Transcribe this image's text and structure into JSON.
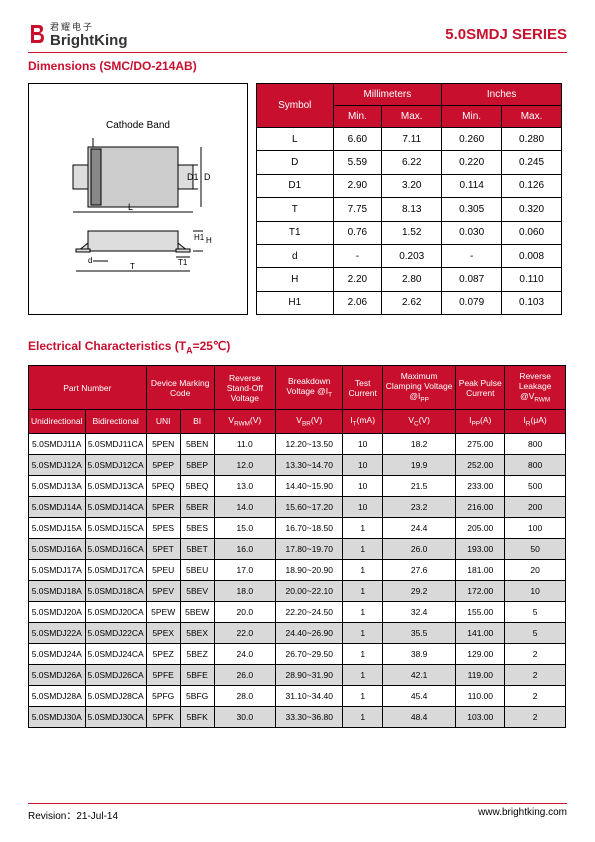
{
  "header": {
    "brand_cn": "君耀电子",
    "brand_en": "BrightKing",
    "series": "5.0SMDJ SERIES"
  },
  "sections": {
    "dimensions_title": "Dimensions (SMC/DO-214AB)",
    "cathode_label": "Cathode Band",
    "electrical_title_prefix": "Electrical Characteristics (T",
    "electrical_title_sub": "A",
    "electrical_title_suffix": "=25℃)"
  },
  "dim_table": {
    "headers": {
      "symbol": "Symbol",
      "mm": "Millimeters",
      "in": "Inches",
      "min": "Min.",
      "max": "Max."
    },
    "rows": [
      {
        "sym": "L",
        "mm_min": "6.60",
        "mm_max": "7.11",
        "in_min": "0.260",
        "in_max": "0.280"
      },
      {
        "sym": "D",
        "mm_min": "5.59",
        "mm_max": "6.22",
        "in_min": "0.220",
        "in_max": "0.245"
      },
      {
        "sym": "D1",
        "mm_min": "2.90",
        "mm_max": "3.20",
        "in_min": "0.114",
        "in_max": "0.126"
      },
      {
        "sym": "T",
        "mm_min": "7.75",
        "mm_max": "8.13",
        "in_min": "0.305",
        "in_max": "0.320"
      },
      {
        "sym": "T1",
        "mm_min": "0.76",
        "mm_max": "1.52",
        "in_min": "0.030",
        "in_max": "0.060"
      },
      {
        "sym": "d",
        "mm_min": "-",
        "mm_max": "0.203",
        "in_min": "-",
        "in_max": "0.008"
      },
      {
        "sym": "H",
        "mm_min": "2.20",
        "mm_max": "2.80",
        "in_min": "0.087",
        "in_max": "0.110"
      },
      {
        "sym": "H1",
        "mm_min": "2.06",
        "mm_max": "2.62",
        "in_min": "0.079",
        "in_max": "0.103"
      }
    ]
  },
  "elec_table": {
    "headers": {
      "part": "Part Number",
      "marking": "Device Marking Code",
      "vrwm_h": "Reverse Stand-Off Voltage",
      "vbr_h": "Breakdown Voltage @I",
      "vbr_sub": "T",
      "it_h": "Test Current",
      "vc_h": "Maximum Clamping Voltage @I",
      "vc_sub": "PP",
      "ipp_h": "Peak Pulse Current",
      "ir_h": "Reverse Leakage @V",
      "ir_sub": "RWM",
      "uni": "Unidirectional",
      "bi": "Bidirectional",
      "m_uni": "UNI",
      "m_bi": "BI",
      "vrwm": "V",
      "vrwm_s": "RWM",
      "vrwm_u": "(V)",
      "vbr": "V",
      "vbr_s": "BR",
      "vbr_u": "(V)",
      "it": "I",
      "it_s": "T",
      "it_u": "(mA)",
      "vc": "V",
      "vc_s": "C",
      "vc_u": "(V)",
      "ipp": "I",
      "ipp_s": "PP",
      "ipp_u": "(A)",
      "ir": "I",
      "ir_s": "R",
      "ir_u": "(μA)"
    },
    "rows": [
      {
        "u": "5.0SMDJ11A",
        "b": "5.0SMDJ11CA",
        "mu": "5PEN",
        "mb": "5BEN",
        "vrwm": "11.0",
        "vbr": "12.20~13.50",
        "it": "10",
        "vc": "18.2",
        "ipp": "275.00",
        "ir": "800",
        "alt": false
      },
      {
        "u": "5.0SMDJ12A",
        "b": "5.0SMDJ12CA",
        "mu": "5PEP",
        "mb": "5BEP",
        "vrwm": "12.0",
        "vbr": "13.30~14.70",
        "it": "10",
        "vc": "19.9",
        "ipp": "252.00",
        "ir": "800",
        "alt": true
      },
      {
        "u": "5.0SMDJ13A",
        "b": "5.0SMDJ13CA",
        "mu": "5PEQ",
        "mb": "5BEQ",
        "vrwm": "13.0",
        "vbr": "14.40~15.90",
        "it": "10",
        "vc": "21.5",
        "ipp": "233.00",
        "ir": "500",
        "alt": false
      },
      {
        "u": "5.0SMDJ14A",
        "b": "5.0SMDJ14CA",
        "mu": "5PER",
        "mb": "5BER",
        "vrwm": "14.0",
        "vbr": "15.60~17.20",
        "it": "10",
        "vc": "23.2",
        "ipp": "216.00",
        "ir": "200",
        "alt": true
      },
      {
        "u": "5.0SMDJ15A",
        "b": "5.0SMDJ15CA",
        "mu": "5PES",
        "mb": "5BES",
        "vrwm": "15.0",
        "vbr": "16.70~18.50",
        "it": "1",
        "vc": "24.4",
        "ipp": "205.00",
        "ir": "100",
        "alt": false
      },
      {
        "u": "5.0SMDJ16A",
        "b": "5.0SMDJ16CA",
        "mu": "5PET",
        "mb": "5BET",
        "vrwm": "16.0",
        "vbr": "17.80~19.70",
        "it": "1",
        "vc": "26.0",
        "ipp": "193.00",
        "ir": "50",
        "alt": true
      },
      {
        "u": "5.0SMDJ17A",
        "b": "5.0SMDJ17CA",
        "mu": "5PEU",
        "mb": "5BEU",
        "vrwm": "17.0",
        "vbr": "18.90~20.90",
        "it": "1",
        "vc": "27.6",
        "ipp": "181.00",
        "ir": "20",
        "alt": false
      },
      {
        "u": "5.0SMDJ18A",
        "b": "5.0SMDJ18CA",
        "mu": "5PEV",
        "mb": "5BEV",
        "vrwm": "18.0",
        "vbr": "20.00~22.10",
        "it": "1",
        "vc": "29.2",
        "ipp": "172.00",
        "ir": "10",
        "alt": true
      },
      {
        "u": "5.0SMDJ20A",
        "b": "5.0SMDJ20CA",
        "mu": "5PEW",
        "mb": "5BEW",
        "vrwm": "20.0",
        "vbr": "22.20~24.50",
        "it": "1",
        "vc": "32.4",
        "ipp": "155.00",
        "ir": "5",
        "alt": false
      },
      {
        "u": "5.0SMDJ22A",
        "b": "5.0SMDJ22CA",
        "mu": "5PEX",
        "mb": "5BEX",
        "vrwm": "22.0",
        "vbr": "24.40~26.90",
        "it": "1",
        "vc": "35.5",
        "ipp": "141.00",
        "ir": "5",
        "alt": true
      },
      {
        "u": "5.0SMDJ24A",
        "b": "5.0SMDJ24CA",
        "mu": "5PEZ",
        "mb": "5BEZ",
        "vrwm": "24.0",
        "vbr": "26.70~29.50",
        "it": "1",
        "vc": "38.9",
        "ipp": "129.00",
        "ir": "2",
        "alt": false
      },
      {
        "u": "5.0SMDJ26A",
        "b": "5.0SMDJ26CA",
        "mu": "5PFE",
        "mb": "5BFE",
        "vrwm": "26.0",
        "vbr": "28.90~31.90",
        "it": "1",
        "vc": "42.1",
        "ipp": "119.00",
        "ir": "2",
        "alt": true
      },
      {
        "u": "5.0SMDJ28A",
        "b": "5.0SMDJ28CA",
        "mu": "5PFG",
        "mb": "5BFG",
        "vrwm": "28.0",
        "vbr": "31.10~34.40",
        "it": "1",
        "vc": "45.4",
        "ipp": "110.00",
        "ir": "2",
        "alt": false
      },
      {
        "u": "5.0SMDJ30A",
        "b": "5.0SMDJ30CA",
        "mu": "5PFK",
        "mb": "5BFK",
        "vrwm": "30.0",
        "vbr": "33.30~36.80",
        "it": "1",
        "vc": "48.4",
        "ipp": "103.00",
        "ir": "2",
        "alt": true
      }
    ]
  },
  "footer": {
    "revision": "Revision：21-Jul-14",
    "url": "www.brightking.com"
  },
  "colors": {
    "accent": "#c8102e",
    "alt_row": "#d9d9d9"
  }
}
